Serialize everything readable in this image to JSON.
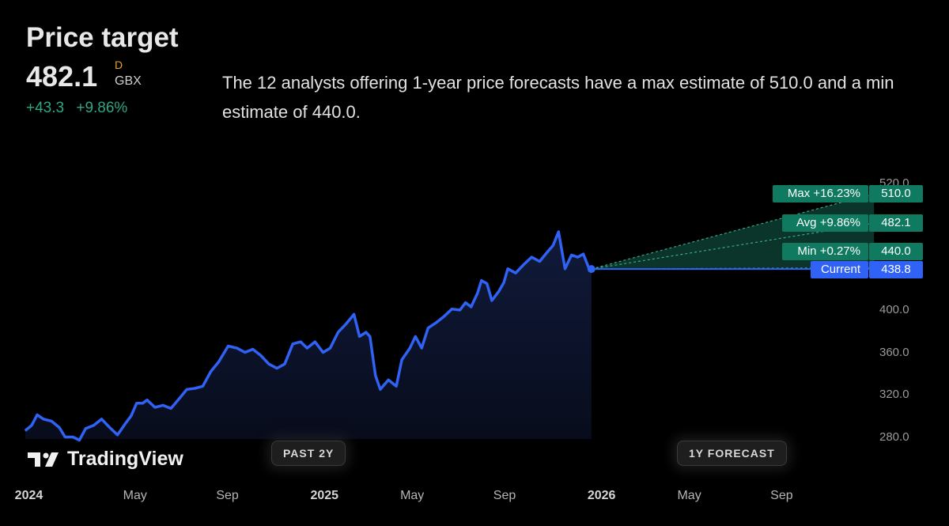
{
  "header": {
    "title": "Price target",
    "price": "482.1",
    "interval_flag": "D",
    "currency": "GBX",
    "change_abs": "+43.3",
    "change_pct": "+9.86%",
    "description": "The 12 analysts offering 1-year price forecasts have a max estimate of 510.0 and a min estimate of 440.0."
  },
  "buttons": {
    "past": "PAST 2Y",
    "forecast": "1Y FORECAST"
  },
  "logo_text": "TradingView",
  "colors": {
    "line": "#2f62f5",
    "forecast": "#0f7a5f",
    "change": "#2ea784",
    "flag": "#e5a12b"
  },
  "chart_data": {
    "type": "line",
    "x_unit": "months since Jan 2024",
    "xlim": [
      -0.8,
      37.5
    ],
    "ylim": [
      272,
      525
    ],
    "y_ticks": [
      "520.0",
      "400.0",
      "360.0",
      "320.0",
      "280.0"
    ],
    "y_tick_values": [
      520,
      400,
      360,
      320,
      280
    ],
    "x_ticks": [
      {
        "label": "2024",
        "m": -0.6,
        "bold": true
      },
      {
        "label": "May",
        "m": 4
      },
      {
        "label": "Sep",
        "m": 8
      },
      {
        "label": "2025",
        "m": 12.2,
        "bold": true
      },
      {
        "label": "May",
        "m": 16
      },
      {
        "label": "Sep",
        "m": 20
      },
      {
        "label": "2026",
        "m": 24.2,
        "bold": true
      },
      {
        "label": "May",
        "m": 28
      },
      {
        "label": "Sep",
        "m": 32
      }
    ],
    "series": [
      {
        "name": "Price",
        "points": [
          [
            -0.76,
            286
          ],
          [
            -0.48,
            291
          ],
          [
            -0.24,
            301
          ],
          [
            0.03,
            297
          ],
          [
            0.38,
            295
          ],
          [
            0.72,
            289
          ],
          [
            0.97,
            280
          ],
          [
            1.31,
            280
          ],
          [
            1.59,
            277
          ],
          [
            1.86,
            288
          ],
          [
            2.21,
            291
          ],
          [
            2.55,
            297
          ],
          [
            2.9,
            289
          ],
          [
            3.24,
            282
          ],
          [
            3.59,
            293
          ],
          [
            3.83,
            300
          ],
          [
            4.07,
            312
          ],
          [
            4.34,
            312
          ],
          [
            4.52,
            315
          ],
          [
            4.86,
            308
          ],
          [
            5.21,
            310
          ],
          [
            5.55,
            307
          ],
          [
            5.9,
            316
          ],
          [
            6.24,
            325
          ],
          [
            6.59,
            326
          ],
          [
            6.93,
            328
          ],
          [
            7.28,
            342
          ],
          [
            7.62,
            351
          ],
          [
            8.03,
            366
          ],
          [
            8.41,
            364
          ],
          [
            8.76,
            360
          ],
          [
            9.1,
            363
          ],
          [
            9.45,
            357
          ],
          [
            9.79,
            349
          ],
          [
            10.14,
            345
          ],
          [
            10.48,
            349
          ],
          [
            10.83,
            368
          ],
          [
            11.17,
            370
          ],
          [
            11.45,
            364
          ],
          [
            11.79,
            370
          ],
          [
            12.14,
            360
          ],
          [
            12.45,
            364
          ],
          [
            12.79,
            379
          ],
          [
            13.14,
            387
          ],
          [
            13.48,
            396
          ],
          [
            13.72,
            375
          ],
          [
            14.0,
            379
          ],
          [
            14.17,
            375
          ],
          [
            14.41,
            338
          ],
          [
            14.62,
            325
          ],
          [
            14.97,
            334
          ],
          [
            15.31,
            328
          ],
          [
            15.55,
            353
          ],
          [
            15.9,
            364
          ],
          [
            16.14,
            375
          ],
          [
            16.41,
            364
          ],
          [
            16.69,
            383
          ],
          [
            17.03,
            388
          ],
          [
            17.38,
            394
          ],
          [
            17.72,
            401
          ],
          [
            18.07,
            400
          ],
          [
            18.31,
            407
          ],
          [
            18.55,
            403
          ],
          [
            18.83,
            416
          ],
          [
            19.0,
            428
          ],
          [
            19.24,
            425
          ],
          [
            19.45,
            409
          ],
          [
            19.76,
            418
          ],
          [
            19.97,
            426
          ],
          [
            20.14,
            439
          ],
          [
            20.48,
            435
          ],
          [
            20.83,
            443
          ],
          [
            21.17,
            450
          ],
          [
            21.52,
            446
          ],
          [
            21.86,
            455
          ],
          [
            22.1,
            461
          ],
          [
            22.34,
            474
          ],
          [
            22.62,
            439
          ],
          [
            22.9,
            452
          ],
          [
            23.17,
            450
          ],
          [
            23.41,
            453
          ],
          [
            23.66,
            439
          ],
          [
            23.76,
            438.8
          ]
        ]
      }
    ],
    "forecast": {
      "start_month": 23.76,
      "end_month": 36,
      "current": {
        "label": "Current",
        "value": "438.8",
        "v": 438.8
      },
      "max": {
        "label": "Max +16.23%",
        "value": "510.0",
        "v": 510.0
      },
      "avg": {
        "label": "Avg +9.86%",
        "value": "482.1",
        "v": 482.1
      },
      "min": {
        "label": "Min +0.27%",
        "value": "440.0",
        "v": 440.0
      }
    }
  }
}
